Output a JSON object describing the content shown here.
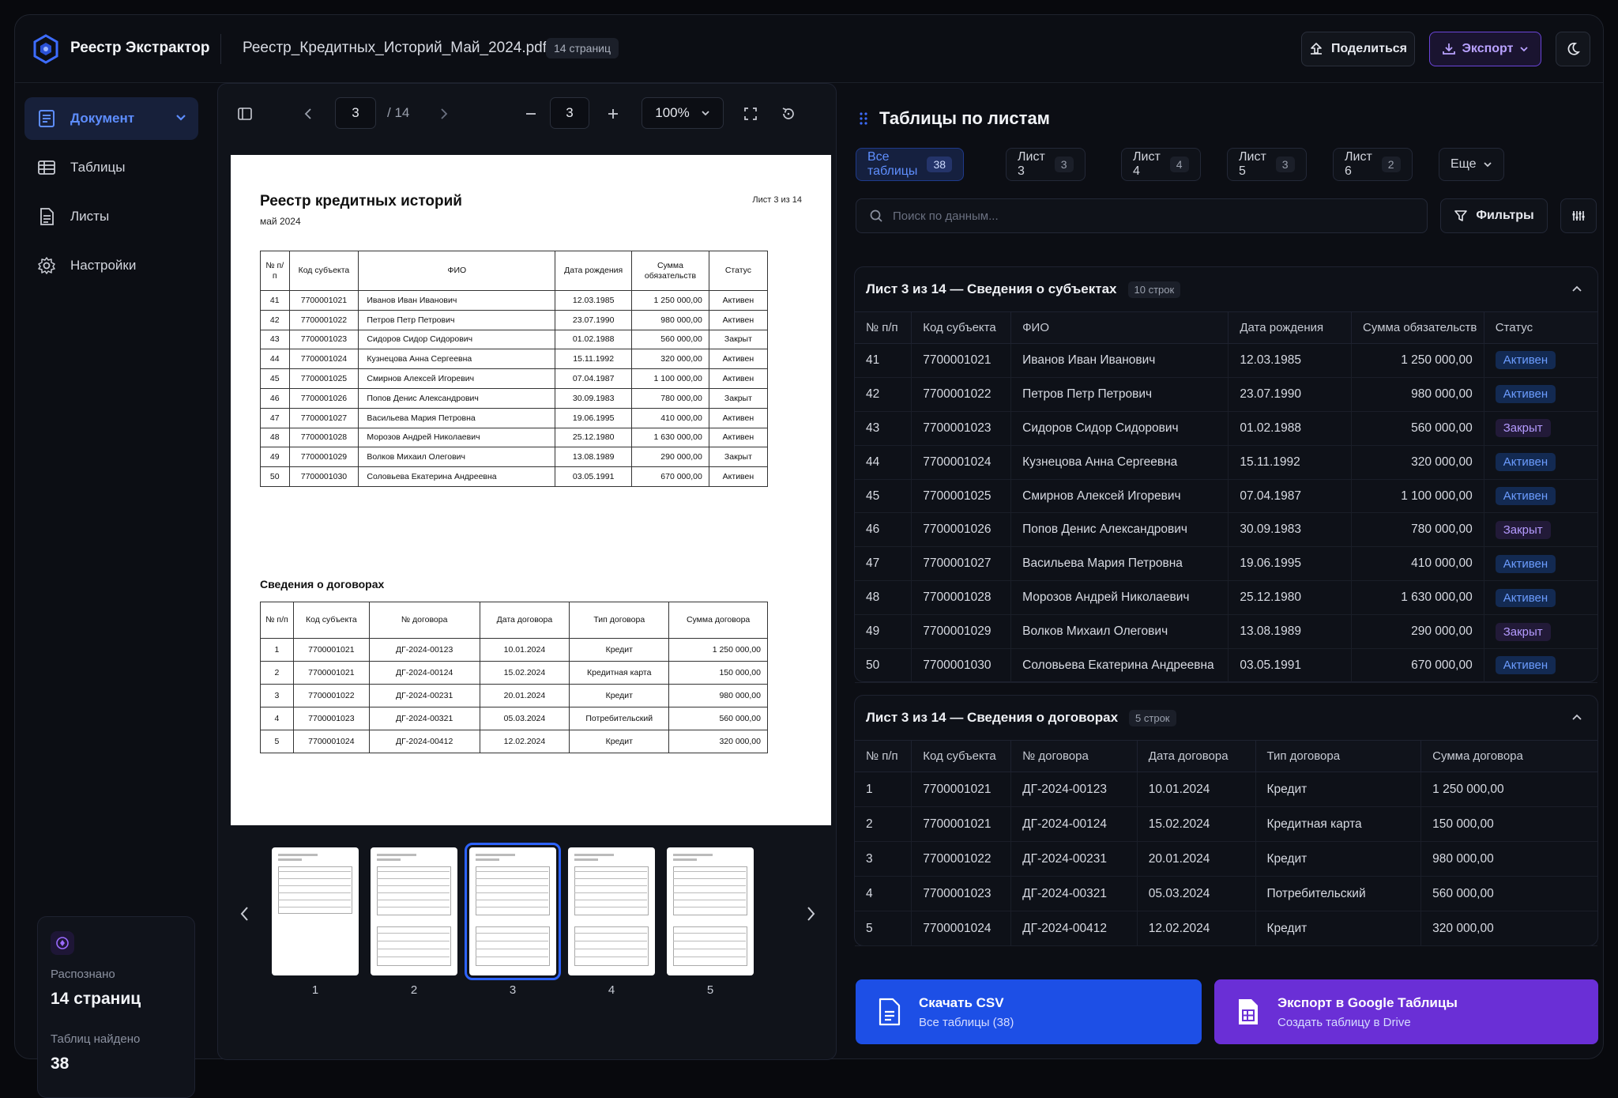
{
  "header": {
    "brand": "Реестр Экстрактор",
    "file_name": "Реестр_Кредитных_Историй_Май_2024.pdf",
    "pages_badge": "14 страниц",
    "share_label": "Поделиться",
    "export_label": "Экспорт"
  },
  "sidebar": {
    "items": [
      {
        "label": "Документ",
        "icon": "document-icon"
      },
      {
        "label": "Таблицы",
        "icon": "table-icon"
      },
      {
        "label": "Листы",
        "icon": "sheets-icon"
      },
      {
        "label": "Настройки",
        "icon": "gear-icon"
      }
    ],
    "stats": {
      "recognized_label": "Распознано",
      "recognized_value": "14 страниц",
      "tables_label": "Таблиц найдено",
      "tables_value": "38"
    }
  },
  "viewer": {
    "page_input": "3",
    "page_total": "/ 14",
    "zoom_page": "3",
    "zoom_level": "100%",
    "pdf": {
      "title": "Реестр кредитных историй",
      "subtitle": "май 2024",
      "sheet_label": "Лист 3 из 14",
      "subjects_headers": [
        "№ п/п",
        "Код субъекта",
        "ФИО",
        "Дата рождения",
        "Сумма обязательств",
        "Статус"
      ],
      "contracts_title": "Сведения о договорах",
      "contracts_headers": [
        "№ п/п",
        "Код субъекта",
        "№ договора",
        "Дата договора",
        "Тип договора",
        "Сумма договора"
      ]
    },
    "thumbnails": [
      "1",
      "2",
      "3",
      "4",
      "5"
    ]
  },
  "panel": {
    "title": "Таблицы по листам",
    "tabs": [
      {
        "label": "Все таблицы",
        "count": "38"
      },
      {
        "label": "Лист 3",
        "count": "3"
      },
      {
        "label": "Лист 4",
        "count": "4"
      },
      {
        "label": "Лист 5",
        "count": "3"
      },
      {
        "label": "Лист 6",
        "count": "2"
      }
    ],
    "more_label": "Еще",
    "search_placeholder": "Поиск по данным...",
    "filters_label": "Фильтры",
    "subjects": {
      "title": "Лист 3 из 14 — Сведения о субъектах",
      "rows_badge": "10 строк",
      "headers": [
        "№ п/п",
        "Код субъекта",
        "ФИО",
        "Дата рождения",
        "Сумма обязательств",
        "Статус"
      ],
      "rows": [
        [
          "41",
          "7700001021",
          "Иванов Иван Иванович",
          "12.03.1985",
          "1 250 000,00",
          "Активен"
        ],
        [
          "42",
          "7700001022",
          "Петров Петр Петрович",
          "23.07.1990",
          "980 000,00",
          "Активен"
        ],
        [
          "43",
          "7700001023",
          "Сидоров Сидор Сидорович",
          "01.02.1988",
          "560 000,00",
          "Закрыт"
        ],
        [
          "44",
          "7700001024",
          "Кузнецова Анна Сергеевна",
          "15.11.1992",
          "320 000,00",
          "Активен"
        ],
        [
          "45",
          "7700001025",
          "Смирнов Алексей Игоревич",
          "07.04.1987",
          "1 100 000,00",
          "Активен"
        ],
        [
          "46",
          "7700001026",
          "Попов Денис Александрович",
          "30.09.1983",
          "780 000,00",
          "Закрыт"
        ],
        [
          "47",
          "7700001027",
          "Васильева Мария Петровна",
          "19.06.1995",
          "410 000,00",
          "Активен"
        ],
        [
          "48",
          "7700001028",
          "Морозов Андрей Николаевич",
          "25.12.1980",
          "1 630 000,00",
          "Активен"
        ],
        [
          "49",
          "7700001029",
          "Волков Михаил Олегович",
          "13.08.1989",
          "290 000,00",
          "Закрыт"
        ],
        [
          "50",
          "7700001030",
          "Соловьева Екатерина Андреевна",
          "03.05.1991",
          "670 000,00",
          "Активен"
        ]
      ]
    },
    "contracts": {
      "title": "Лист 3 из 14 — Сведения о договорах",
      "rows_badge": "5 строк",
      "headers": [
        "№ п/п",
        "Код субъекта",
        "№ договора",
        "Дата договора",
        "Тип договора",
        "Сумма договора"
      ],
      "rows": [
        [
          "1",
          "7700001021",
          "ДГ-2024-00123",
          "10.01.2024",
          "Кредит",
          "1 250 000,00"
        ],
        [
          "2",
          "7700001021",
          "ДГ-2024-00124",
          "15.02.2024",
          "Кредитная карта",
          "150 000,00"
        ],
        [
          "3",
          "7700001022",
          "ДГ-2024-00231",
          "20.01.2024",
          "Кредит",
          "980 000,00"
        ],
        [
          "4",
          "7700001023",
          "ДГ-2024-00321",
          "05.03.2024",
          "Потребительский",
          "560 000,00"
        ],
        [
          "5",
          "7700001024",
          "ДГ-2024-00412",
          "12.02.2024",
          "Кредит",
          "320 000,00"
        ]
      ]
    },
    "download_csv": {
      "title": "Скачать CSV",
      "subtitle": "Все таблицы (38)"
    },
    "export_gs": {
      "title": "Экспорт в Google Таблицы",
      "subtitle": "Создать таблицу в Drive"
    }
  },
  "colors": {
    "accent_blue": "#1d4fe6",
    "accent_purple": "#6a2fd6",
    "active": "#6b9cff",
    "closed": "#b59bff"
  }
}
